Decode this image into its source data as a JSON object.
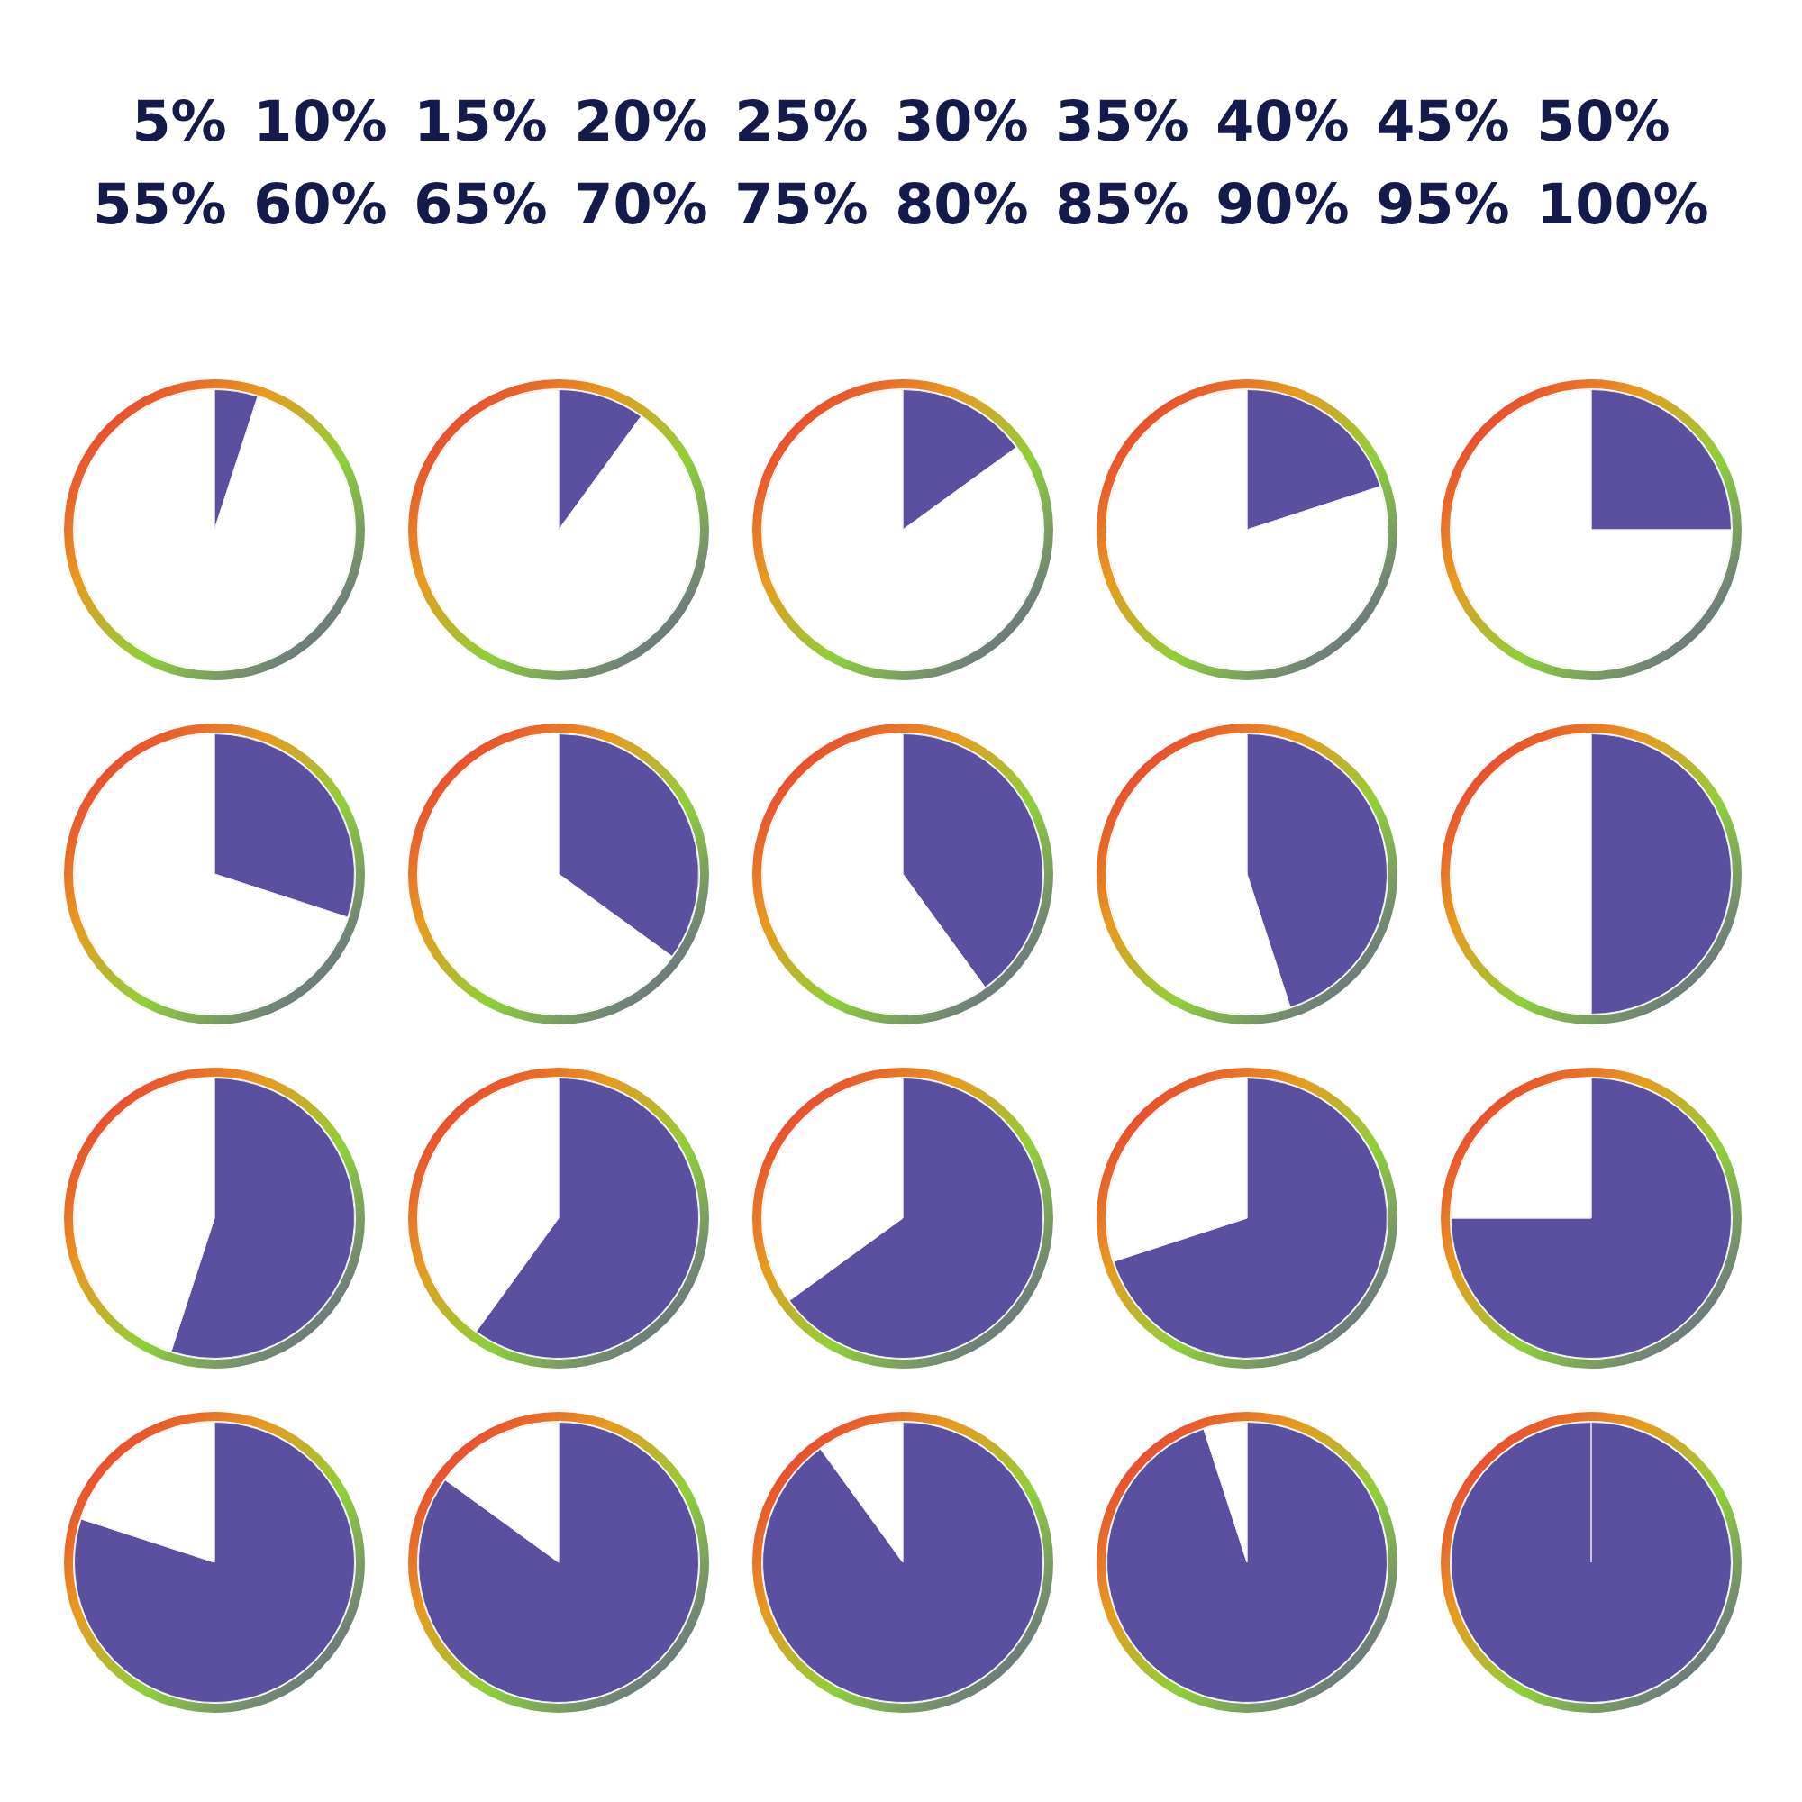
{
  "chart_data": [
    {
      "type": "other",
      "annotations": [
        "5% 10% 15% 20% 25% 30% 35% 40% 45% 50%",
        "55% 60% 65% 70% 75% 80% 85% 90% 95% 100%"
      ]
    },
    {
      "type": "pie",
      "categories": [
        null,
        null
      ],
      "values": [
        5,
        95
      ],
      "colors": [
        "#5b4fa0",
        "#ffffff"
      ]
    },
    {
      "type": "pie",
      "categories": [
        null,
        null
      ],
      "values": [
        10,
        90
      ],
      "colors": [
        "#5b4fa0",
        "#ffffff"
      ]
    },
    {
      "type": "pie",
      "categories": [
        null,
        null
      ],
      "values": [
        15,
        85
      ],
      "colors": [
        "#5b4fa0",
        "#ffffff"
      ]
    },
    {
      "type": "pie",
      "categories": [
        null,
        null
      ],
      "values": [
        20,
        80
      ],
      "colors": [
        "#5b4fa0",
        "#ffffff"
      ]
    },
    {
      "type": "pie",
      "categories": [
        null,
        null
      ],
      "values": [
        25,
        75
      ],
      "colors": [
        "#5b4fa0",
        "#ffffff"
      ]
    },
    {
      "type": "pie",
      "categories": [
        null,
        null
      ],
      "values": [
        30,
        70
      ],
      "colors": [
        "#5b4fa0",
        "#ffffff"
      ]
    },
    {
      "type": "pie",
      "categories": [
        null,
        null
      ],
      "values": [
        35,
        65
      ],
      "colors": [
        "#5b4fa0",
        "#ffffff"
      ]
    },
    {
      "type": "pie",
      "categories": [
        null,
        null
      ],
      "values": [
        40,
        60
      ],
      "colors": [
        "#5b4fa0",
        "#ffffff"
      ]
    },
    {
      "type": "pie",
      "categories": [
        null,
        null
      ],
      "values": [
        45,
        55
      ],
      "colors": [
        "#5b4fa0",
        "#ffffff"
      ]
    },
    {
      "type": "pie",
      "categories": [
        null,
        null
      ],
      "values": [
        50,
        50
      ],
      "colors": [
        "#5b4fa0",
        "#ffffff"
      ]
    },
    {
      "type": "pie",
      "categories": [
        null,
        null
      ],
      "values": [
        55,
        45
      ],
      "colors": [
        "#5b4fa0",
        "#ffffff"
      ]
    },
    {
      "type": "pie",
      "categories": [
        null,
        null
      ],
      "values": [
        60,
        40
      ],
      "colors": [
        "#5b4fa0",
        "#ffffff"
      ]
    },
    {
      "type": "pie",
      "categories": [
        null,
        null
      ],
      "values": [
        65,
        35
      ],
      "colors": [
        "#5b4fa0",
        "#ffffff"
      ]
    },
    {
      "type": "pie",
      "categories": [
        null,
        null
      ],
      "values": [
        70,
        30
      ],
      "colors": [
        "#5b4fa0",
        "#ffffff"
      ]
    },
    {
      "type": "pie",
      "categories": [
        null,
        null
      ],
      "values": [
        75,
        25
      ],
      "colors": [
        "#5b4fa0",
        "#ffffff"
      ]
    },
    {
      "type": "pie",
      "categories": [
        null,
        null
      ],
      "values": [
        80,
        20
      ],
      "colors": [
        "#5b4fa0",
        "#ffffff"
      ]
    },
    {
      "type": "pie",
      "categories": [
        null,
        null
      ],
      "values": [
        85,
        15
      ],
      "colors": [
        "#5b4fa0",
        "#ffffff"
      ]
    },
    {
      "type": "pie",
      "categories": [
        null,
        null
      ],
      "values": [
        90,
        10
      ],
      "colors": [
        "#5b4fa0",
        "#ffffff"
      ]
    },
    {
      "type": "pie",
      "categories": [
        null,
        null
      ],
      "values": [
        95,
        5
      ],
      "colors": [
        "#5b4fa0",
        "#ffffff"
      ]
    },
    {
      "type": "pie",
      "categories": [
        null,
        null
      ],
      "values": [
        100,
        0
      ],
      "colors": [
        "#5b4fa0",
        "#ffffff"
      ]
    }
  ]
}
